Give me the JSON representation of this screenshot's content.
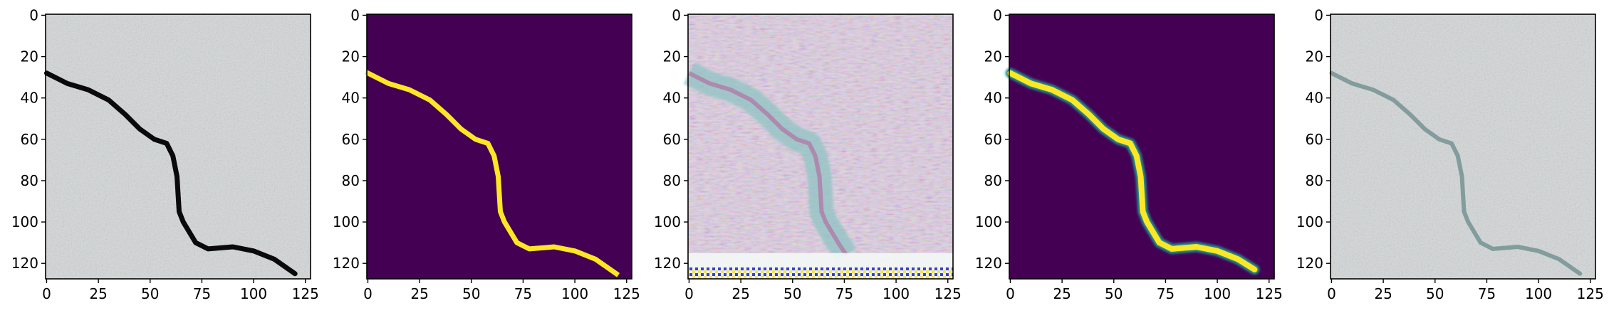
{
  "chart_data": [
    {
      "type": "image",
      "content": "concrete surface photo with dark crack",
      "colormap": "rgb",
      "xlim": [
        0,
        127
      ],
      "ylim": [
        127,
        0
      ],
      "xticks": [
        0,
        25,
        50,
        75,
        100,
        125
      ],
      "yticks": [
        0,
        20,
        40,
        60,
        80,
        100,
        120
      ],
      "crack_path": [
        [
          0,
          28
        ],
        [
          10,
          33
        ],
        [
          20,
          36
        ],
        [
          30,
          41
        ],
        [
          38,
          48
        ],
        [
          45,
          55
        ],
        [
          52,
          60
        ],
        [
          58,
          62
        ],
        [
          61,
          68
        ],
        [
          63,
          78
        ],
        [
          64,
          95
        ],
        [
          66,
          100
        ],
        [
          72,
          110
        ],
        [
          78,
          113
        ],
        [
          90,
          112
        ],
        [
          100,
          114
        ],
        [
          110,
          118
        ],
        [
          120,
          125
        ]
      ],
      "crack_color": "#0a0a0a"
    },
    {
      "type": "heatmap",
      "content": "binary crack mask",
      "colormap": "viridis",
      "xlim": [
        0,
        127
      ],
      "ylim": [
        127,
        0
      ],
      "xticks": [
        0,
        25,
        50,
        75,
        100,
        125
      ],
      "yticks": [
        0,
        20,
        40,
        60,
        80,
        100,
        120
      ],
      "background_color": "#440154",
      "mask_color": "#fde725",
      "crack_path": [
        [
          0,
          28
        ],
        [
          10,
          33
        ],
        [
          20,
          36
        ],
        [
          30,
          41
        ],
        [
          38,
          48
        ],
        [
          45,
          55
        ],
        [
          52,
          60
        ],
        [
          58,
          62
        ],
        [
          61,
          68
        ],
        [
          63,
          78
        ],
        [
          64,
          95
        ],
        [
          66,
          100
        ],
        [
          72,
          110
        ],
        [
          78,
          113
        ],
        [
          90,
          112
        ],
        [
          100,
          114
        ],
        [
          110,
          118
        ],
        [
          120,
          125
        ]
      ]
    },
    {
      "type": "image",
      "content": "noisy pastel reconstruction with crack band and striped bottom rows",
      "colormap": "rgb",
      "xlim": [
        0,
        127
      ],
      "ylim": [
        127,
        0
      ],
      "xticks": [
        0,
        25,
        50,
        75,
        100,
        125
      ],
      "yticks": [
        0,
        20,
        40,
        60,
        80,
        100,
        120
      ],
      "crack_path": [
        [
          0,
          28
        ],
        [
          10,
          33
        ],
        [
          20,
          36
        ],
        [
          30,
          41
        ],
        [
          38,
          48
        ],
        [
          45,
          55
        ],
        [
          52,
          60
        ],
        [
          58,
          62
        ],
        [
          61,
          68
        ],
        [
          63,
          78
        ],
        [
          64,
          95
        ],
        [
          66,
          100
        ],
        [
          72,
          110
        ],
        [
          76,
          116
        ]
      ],
      "band_color": "#8fc4c4"
    },
    {
      "type": "heatmap",
      "content": "predicted crack probability map",
      "colormap": "viridis",
      "xlim": [
        0,
        127
      ],
      "ylim": [
        127,
        0
      ],
      "xticks": [
        0,
        25,
        50,
        75,
        100,
        125
      ],
      "yticks": [
        0,
        20,
        40,
        60,
        80,
        100,
        120
      ],
      "background_color": "#440154",
      "edge_color": "#21918c",
      "core_color": "#fde725",
      "crack_path": [
        [
          0,
          28
        ],
        [
          10,
          33
        ],
        [
          20,
          36
        ],
        [
          30,
          41
        ],
        [
          38,
          48
        ],
        [
          45,
          55
        ],
        [
          52,
          60
        ],
        [
          58,
          62
        ],
        [
          61,
          68
        ],
        [
          63,
          78
        ],
        [
          64,
          95
        ],
        [
          66,
          100
        ],
        [
          72,
          110
        ],
        [
          78,
          113
        ],
        [
          90,
          112
        ],
        [
          100,
          114
        ],
        [
          110,
          118
        ],
        [
          118,
          123
        ]
      ]
    },
    {
      "type": "image",
      "content": "concrete photo with faint colored crack overlay",
      "colormap": "rgb",
      "xlim": [
        0,
        127
      ],
      "ylim": [
        127,
        0
      ],
      "xticks": [
        0,
        25,
        50,
        75,
        100,
        125
      ],
      "yticks": [
        0,
        20,
        40,
        60,
        80,
        100,
        120
      ],
      "crack_path": [
        [
          0,
          28
        ],
        [
          10,
          33
        ],
        [
          20,
          36
        ],
        [
          30,
          41
        ],
        [
          38,
          48
        ],
        [
          45,
          55
        ],
        [
          52,
          60
        ],
        [
          58,
          62
        ],
        [
          61,
          68
        ],
        [
          63,
          78
        ],
        [
          64,
          95
        ],
        [
          66,
          100
        ],
        [
          72,
          110
        ],
        [
          78,
          113
        ],
        [
          90,
          112
        ],
        [
          100,
          114
        ],
        [
          110,
          118
        ],
        [
          120,
          125
        ]
      ],
      "crack_color": "#6f8f90"
    }
  ]
}
